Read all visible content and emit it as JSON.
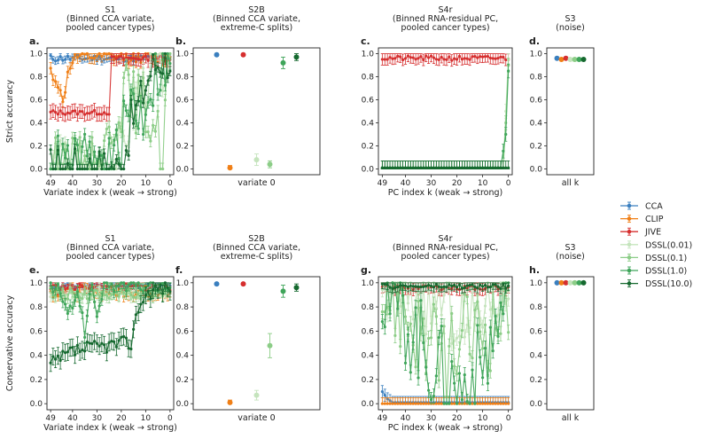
{
  "colors": {
    "CCA": "#3a7fbf",
    "CLIP": "#f07f16",
    "JIVE": "#d62f2f",
    "DSSL(0.01)": "#c5e4bd",
    "DSSL(0.1)": "#8ccd87",
    "DSSL(1.0)": "#3fa55a",
    "DSSL(10.0)": "#15692f"
  },
  "legend": {
    "position": "right",
    "entries": [
      "CCA",
      "CLIP",
      "JIVE",
      "DSSL(0.01)",
      "DSSL(0.1)",
      "DSSL(1.0)",
      "DSSL(10.0)"
    ]
  },
  "row_ylabels": [
    "Strict accuracy",
    "Conservative accuracy"
  ],
  "chart_data": [
    {
      "id": "a",
      "panel_label": "a.",
      "type": "line",
      "title": "S1\n(Binned CCA variate,\npooled cancer types)",
      "xlabel": "Variate index  k  (weak → strong)",
      "ylabel": "Strict accuracy",
      "xlim": [
        50.5,
        -1.5
      ],
      "ylim": [
        -0.05,
        1.05
      ],
      "xticks": [
        49,
        40,
        30,
        20,
        10,
        0
      ],
      "yticks": [
        0.0,
        0.2,
        0.4,
        0.6,
        0.8,
        1.0
      ],
      "series": [
        {
          "name": "CCA",
          "mode": "const",
          "value": 0.96,
          "noise": 0.03,
          "err": 0.03,
          "seed": 11
        },
        {
          "name": "CLIP",
          "mode": "anchors",
          "anchors": [
            [
              49,
              0.85
            ],
            [
              46,
              0.74
            ],
            [
              44,
              0.56
            ],
            [
              42,
              0.83
            ],
            [
              40,
              0.95
            ],
            [
              37,
              0.97
            ],
            [
              0,
              0.97
            ]
          ],
          "noise": 0.05,
          "err": 0.05,
          "seed": 12
        },
        {
          "name": "JIVE",
          "mode": "step",
          "value": 0.49,
          "to": 24,
          "after": 0.96,
          "noise": 0.02,
          "err": 0.06,
          "seed": 13
        },
        {
          "name": "DSSL(0.01)",
          "mode": "anchors",
          "anchors": [
            [
              49,
              0.02
            ],
            [
              22,
              0.03
            ],
            [
              18,
              0.3
            ],
            [
              14,
              0.6
            ],
            [
              10,
              0.75
            ],
            [
              6,
              0.92
            ],
            [
              0,
              0.93
            ]
          ],
          "noise": 0.25,
          "err": 0.05,
          "seed": 14
        },
        {
          "name": "DSSL(0.1)",
          "mode": "anchors",
          "anchors": [
            [
              49,
              0.01
            ],
            [
              30,
              0.02
            ],
            [
              26,
              0.2
            ],
            [
              22,
              0.55
            ],
            [
              18,
              0.65
            ],
            [
              12,
              0.55
            ],
            [
              6,
              0.4
            ],
            [
              3,
              0.05
            ],
            [
              1,
              0.95
            ],
            [
              0,
              0.95
            ]
          ],
          "noise": 0.28,
          "err": 0.05,
          "seed": 15
        },
        {
          "name": "DSSL(1.0)",
          "mode": "anchors",
          "anchors": [
            [
              49,
              0.01
            ],
            [
              24,
              0.02
            ],
            [
              20,
              0.2
            ],
            [
              16,
              0.6
            ],
            [
              12,
              0.45
            ],
            [
              8,
              0.75
            ],
            [
              4,
              0.9
            ],
            [
              0,
              0.93
            ]
          ],
          "noise": 0.3,
          "err": 0.05,
          "seed": 16
        },
        {
          "name": "DSSL(10.0)",
          "mode": "anchors",
          "anchors": [
            [
              49,
              0.0
            ],
            [
              20,
              0.0
            ],
            [
              16,
              0.4
            ],
            [
              12,
              0.6
            ],
            [
              8,
              0.85
            ],
            [
              4,
              0.95
            ],
            [
              0,
              0.96
            ]
          ],
          "noise": 0.2,
          "err": 0.04,
          "seed": 17
        }
      ]
    },
    {
      "id": "b",
      "panel_label": "b.",
      "type": "scatter",
      "title": "S2B\n(Binned CCA variate,\nextreme-C splits)",
      "xlabel": "variate  0",
      "ylabel": "",
      "ylim": [
        -0.05,
        1.05
      ],
      "yticks": [
        0.0,
        0.2,
        0.4,
        0.6,
        0.8,
        1.0
      ],
      "points": [
        {
          "name": "CCA",
          "y": 0.99,
          "err": 0.01
        },
        {
          "name": "CLIP",
          "y": 0.01,
          "err": 0.02
        },
        {
          "name": "JIVE",
          "y": 0.99,
          "err": 0.01
        },
        {
          "name": "DSSL(0.01)",
          "y": 0.08,
          "err": 0.05
        },
        {
          "name": "DSSL(0.1)",
          "y": 0.04,
          "err": 0.03
        },
        {
          "name": "DSSL(1.0)",
          "y": 0.92,
          "err": 0.05
        },
        {
          "name": "DSSL(10.0)",
          "y": 0.97,
          "err": 0.03
        }
      ]
    },
    {
      "id": "c",
      "panel_label": "c.",
      "type": "line",
      "title": "S4r\n(Binned RNA-residual PC,\npooled cancer types)",
      "xlabel": "PC index  k  (weak → strong)",
      "ylabel": "",
      "xlim": [
        50.5,
        -1.5
      ],
      "ylim": [
        -0.05,
        1.05
      ],
      "xticks": [
        49,
        40,
        30,
        20,
        10,
        0
      ],
      "yticks": [
        0.0,
        0.2,
        0.4,
        0.6,
        0.8,
        1.0
      ],
      "series": [
        {
          "name": "JIVE",
          "mode": "const",
          "value": 0.96,
          "noise": 0.02,
          "err": 0.05,
          "seed": 21
        },
        {
          "name": "DSSL(0.01)",
          "mode": "anchors",
          "anchors": [
            [
              49,
              0.01
            ],
            [
              2,
              0.01
            ],
            [
              1,
              0.5
            ],
            [
              0,
              0.95
            ]
          ],
          "noise": 0.0,
          "err": 0.06,
          "seed": 22
        },
        {
          "name": "DSSL(0.1)",
          "mode": "anchors",
          "anchors": [
            [
              49,
              0.01
            ],
            [
              2,
              0.01
            ],
            [
              1,
              0.4
            ],
            [
              0,
              0.9
            ]
          ],
          "noise": 0.0,
          "err": 0.06,
          "seed": 23
        },
        {
          "name": "DSSL(1.0)",
          "mode": "anchors",
          "anchors": [
            [
              49,
              0.01
            ],
            [
              3,
              0.01
            ],
            [
              1,
              0.3
            ],
            [
              0,
              0.85
            ]
          ],
          "noise": 0.0,
          "err": 0.06,
          "seed": 24
        },
        {
          "name": "DSSL(10.0)",
          "mode": "anchors",
          "anchors": [
            [
              49,
              0.01
            ],
            [
              2,
              0.01
            ],
            [
              0,
              0.01
            ]
          ],
          "noise": 0.0,
          "err": 0.06,
          "seed": 25
        }
      ]
    },
    {
      "id": "d",
      "panel_label": "d.",
      "type": "scatter",
      "title": "S3\n(noise)",
      "xlabel": "all  k",
      "ylabel": "",
      "ylim": [
        -0.05,
        1.05
      ],
      "yticks": [
        0.0,
        0.2,
        0.4,
        0.6,
        0.8,
        1.0
      ],
      "points": [
        {
          "name": "CCA",
          "y": 0.96,
          "err": 0.005
        },
        {
          "name": "CLIP",
          "y": 0.95,
          "err": 0.005
        },
        {
          "name": "JIVE",
          "y": 0.96,
          "err": 0.005
        },
        {
          "name": "DSSL(0.01)",
          "y": 0.95,
          "err": 0.005
        },
        {
          "name": "DSSL(0.1)",
          "y": 0.95,
          "err": 0.005
        },
        {
          "name": "DSSL(1.0)",
          "y": 0.95,
          "err": 0.005
        },
        {
          "name": "DSSL(10.0)",
          "y": 0.95,
          "err": 0.005
        }
      ]
    },
    {
      "id": "e",
      "panel_label": "e.",
      "type": "line",
      "title": "S1\n(Binned CCA variate,\npooled cancer types)",
      "xlabel": "Variate index  k  (weak → strong)",
      "ylabel": "Conservative accuracy",
      "xlim": [
        50.5,
        -1.5
      ],
      "ylim": [
        -0.05,
        1.05
      ],
      "xticks": [
        49,
        40,
        30,
        20,
        10,
        0
      ],
      "yticks": [
        0.0,
        0.2,
        0.4,
        0.6,
        0.8,
        1.0
      ],
      "series": [
        {
          "name": "CCA",
          "mode": "const",
          "value": 0.97,
          "noise": 0.02,
          "err": 0.02,
          "seed": 31
        },
        {
          "name": "CLIP",
          "mode": "const",
          "value": 0.93,
          "noise": 0.05,
          "err": 0.04,
          "seed": 32
        },
        {
          "name": "JIVE",
          "mode": "const",
          "value": 0.96,
          "noise": 0.03,
          "err": 0.03,
          "seed": 33
        },
        {
          "name": "DSSL(0.01)",
          "mode": "const",
          "value": 0.92,
          "noise": 0.05,
          "err": 0.04,
          "seed": 34
        },
        {
          "name": "DSSL(0.1)",
          "mode": "const",
          "value": 0.91,
          "noise": 0.05,
          "err": 0.04,
          "seed": 35
        },
        {
          "name": "DSSL(1.0)",
          "mode": "anchors",
          "anchors": [
            [
              49,
              0.97
            ],
            [
              45,
              0.93
            ],
            [
              42,
              0.7
            ],
            [
              38,
              0.95
            ],
            [
              35,
              0.6
            ],
            [
              32,
              0.97
            ],
            [
              30,
              0.75
            ],
            [
              27,
              0.98
            ],
            [
              0,
              0.97
            ]
          ],
          "noise": 0.06,
          "err": 0.05,
          "seed": 36
        },
        {
          "name": "DSSL(10.0)",
          "mode": "anchors",
          "anchors": [
            [
              49,
              0.32
            ],
            [
              44,
              0.38
            ],
            [
              40,
              0.43
            ],
            [
              30,
              0.47
            ],
            [
              20,
              0.5
            ],
            [
              16,
              0.5
            ],
            [
              13,
              0.8
            ],
            [
              10,
              0.9
            ],
            [
              6,
              0.95
            ],
            [
              0,
              0.97
            ]
          ],
          "noise": 0.06,
          "err": 0.07,
          "seed": 37
        }
      ]
    },
    {
      "id": "f",
      "panel_label": "f.",
      "type": "scatter",
      "title": "S2B\n(Binned CCA variate,\nextreme-C splits)",
      "xlabel": "variate  0",
      "ylabel": "",
      "ylim": [
        -0.05,
        1.05
      ],
      "yticks": [
        0.0,
        0.2,
        0.4,
        0.6,
        0.8,
        1.0
      ],
      "points": [
        {
          "name": "CCA",
          "y": 0.99,
          "err": 0.01
        },
        {
          "name": "CLIP",
          "y": 0.01,
          "err": 0.02
        },
        {
          "name": "JIVE",
          "y": 0.99,
          "err": 0.01
        },
        {
          "name": "DSSL(0.01)",
          "y": 0.07,
          "err": 0.04
        },
        {
          "name": "DSSL(0.1)",
          "y": 0.48,
          "err": 0.1
        },
        {
          "name": "DSSL(1.0)",
          "y": 0.93,
          "err": 0.05
        },
        {
          "name": "DSSL(10.0)",
          "y": 0.96,
          "err": 0.03
        }
      ]
    },
    {
      "id": "g",
      "panel_label": "g.",
      "type": "line",
      "title": "S4r\n(Binned RNA-residual PC,\npooled cancer types)",
      "xlabel": "PC index  k  (weak → strong)",
      "ylabel": "",
      "xlim": [
        50.5,
        -1.5
      ],
      "ylim": [
        -0.05,
        1.05
      ],
      "xticks": [
        49,
        40,
        30,
        20,
        10,
        0
      ],
      "yticks": [
        0.0,
        0.2,
        0.4,
        0.6,
        0.8,
        1.0
      ],
      "series": [
        {
          "name": "CCA",
          "mode": "anchors",
          "anchors": [
            [
              49,
              0.1
            ],
            [
              47,
              0.04
            ],
            [
              45,
              0.01
            ],
            [
              0,
              0.01
            ]
          ],
          "noise": 0.0,
          "err": 0.05,
          "seed": 41
        },
        {
          "name": "CLIP",
          "mode": "const",
          "value": 0.0,
          "noise": 0.0,
          "err": 0.05,
          "seed": 42
        },
        {
          "name": "JIVE",
          "mode": "const",
          "value": 0.96,
          "noise": 0.02,
          "err": 0.05,
          "seed": 43
        },
        {
          "name": "DSSL(0.01)",
          "mode": "anchors",
          "anchors": [
            [
              49,
              0.95
            ],
            [
              30,
              0.92
            ],
            [
              20,
              0.75
            ],
            [
              15,
              0.55
            ],
            [
              12,
              0.8
            ],
            [
              8,
              0.9
            ],
            [
              0,
              0.96
            ]
          ],
          "noise": 0.35,
          "err": 0.06,
          "seed": 44
        },
        {
          "name": "DSSL(0.1)",
          "mode": "anchors",
          "anchors": [
            [
              49,
              0.9
            ],
            [
              40,
              0.75
            ],
            [
              30,
              0.45
            ],
            [
              25,
              0.35
            ],
            [
              15,
              0.55
            ],
            [
              5,
              0.7
            ],
            [
              0,
              0.9
            ]
          ],
          "noise": 0.4,
          "err": 0.06,
          "seed": 45
        },
        {
          "name": "DSSL(1.0)",
          "mode": "anchors",
          "anchors": [
            [
              49,
              0.95
            ],
            [
              40,
              0.7
            ],
            [
              30,
              0.35
            ],
            [
              20,
              0.1
            ],
            [
              10,
              0.3
            ],
            [
              0,
              0.9
            ]
          ],
          "noise": 0.4,
          "err": 0.06,
          "seed": 46
        },
        {
          "name": "DSSL(10.0)",
          "mode": "const",
          "value": 0.97,
          "noise": 0.02,
          "err": 0.04,
          "seed": 47
        }
      ]
    },
    {
      "id": "h",
      "panel_label": "h.",
      "type": "scatter",
      "title": "S3\n(noise)",
      "xlabel": "all  k",
      "ylabel": "",
      "ylim": [
        -0.05,
        1.05
      ],
      "yticks": [
        0.0,
        0.2,
        0.4,
        0.6,
        0.8,
        1.0
      ],
      "points": [
        {
          "name": "CCA",
          "y": 1.0,
          "err": 0.003
        },
        {
          "name": "CLIP",
          "y": 1.0,
          "err": 0.003
        },
        {
          "name": "JIVE",
          "y": 1.0,
          "err": 0.003
        },
        {
          "name": "DSSL(0.01)",
          "y": 1.0,
          "err": 0.003
        },
        {
          "name": "DSSL(0.1)",
          "y": 1.0,
          "err": 0.003
        },
        {
          "name": "DSSL(1.0)",
          "y": 1.0,
          "err": 0.003
        },
        {
          "name": "DSSL(10.0)",
          "y": 1.0,
          "err": 0.003
        }
      ]
    }
  ]
}
